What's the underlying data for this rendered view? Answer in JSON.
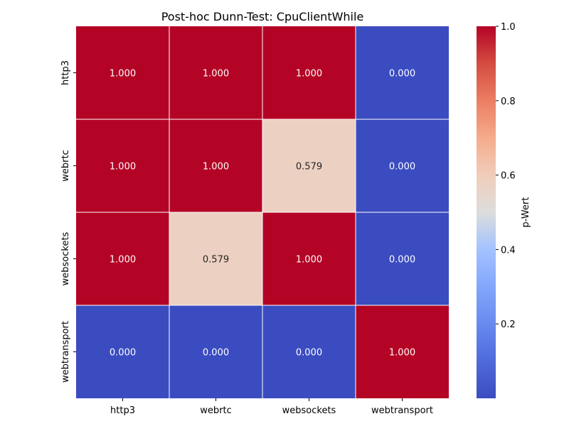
{
  "chart_data": {
    "type": "heatmap",
    "title": "Post-hoc Dunn-Test: CpuClientWhile",
    "x_categories": [
      "http3",
      "webrtc",
      "websockets",
      "webtransport"
    ],
    "y_categories": [
      "http3",
      "webrtc",
      "websockets",
      "webtransport"
    ],
    "values": [
      [
        1.0,
        1.0,
        1.0,
        0.0
      ],
      [
        1.0,
        1.0,
        0.579,
        0.0
      ],
      [
        1.0,
        0.579,
        1.0,
        0.0
      ],
      [
        0.0,
        0.0,
        0.0,
        1.0
      ]
    ],
    "cell_labels": [
      [
        "1.000",
        "1.000",
        "1.000",
        "0.000"
      ],
      [
        "1.000",
        "1.000",
        "0.579",
        "0.000"
      ],
      [
        "1.000",
        "0.579",
        "1.000",
        "0.000"
      ],
      [
        "0.000",
        "0.000",
        "0.000",
        "1.000"
      ]
    ],
    "colormap": "coolwarm",
    "vmin": 0.0,
    "vmax": 1.0,
    "colorbar": {
      "label": "p-Wert",
      "ticks": [
        0.2,
        0.4,
        0.6,
        0.8,
        1.0
      ],
      "tick_labels": [
        "0.2",
        "0.4",
        "0.6",
        "0.8",
        "1.0"
      ]
    },
    "colors": {
      "low": "#3b4cc0",
      "mid": "#dddddd",
      "high": "#b40426",
      "grid_line": "#ffffff"
    }
  }
}
